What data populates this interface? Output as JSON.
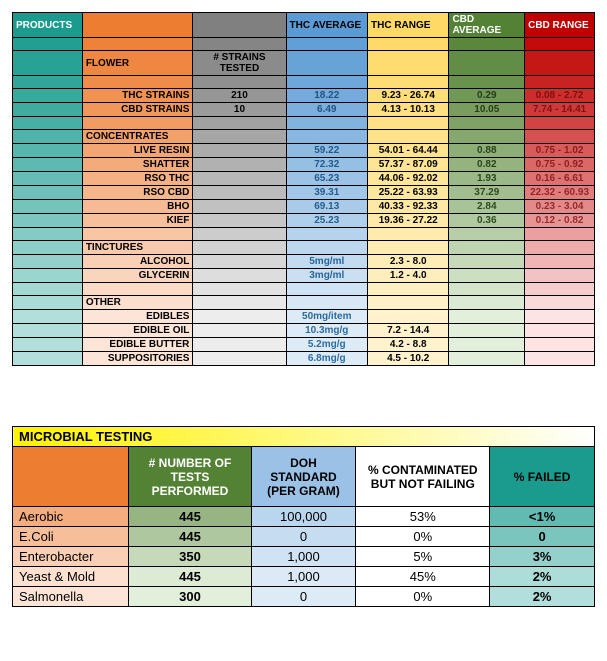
{
  "colors": {
    "teal_dark": "#1a9b8e",
    "teal_mid": "#4db6ac",
    "teal_light": "#b2dfdb",
    "orange_dark": "#ed7d31",
    "orange_mid": "#f4b084",
    "orange_light": "#fce4d6",
    "grey_dark": "#808080",
    "grey_mid": "#bfbfbf",
    "grey_light": "#ededed",
    "blue_dark": "#5b9bd5",
    "blue_mid": "#9bc2e6",
    "blue_light": "#ddebf7",
    "yellow_dark": "#ffd966",
    "yellow_mid": "#ffe699",
    "yellow_light": "#fff2cc",
    "green_dark": "#548235",
    "green_mid": "#a9d08e",
    "green_light": "#e2efda",
    "red_dark": "#c00000",
    "red_mid": "#f4b0b0",
    "red_light": "#fce4e4",
    "white": "#ffffff",
    "yellow_grad_left": "#fff200",
    "yellow_grad_right": "#ffffff"
  },
  "products": {
    "headers": [
      "PRODUCTS",
      "",
      "",
      "THC AVERAGE",
      "THC RANGE",
      "CBD AVERAGE",
      "CBD RANGE"
    ],
    "strains_tested_label": "# STRAINS TESTED",
    "sections": [
      {
        "title": "FLOWER",
        "rows": [
          {
            "name": "THC STRAINS",
            "tested": "210",
            "thc_avg": "18.22",
            "thc_range": "9.23 - 26.74",
            "cbd_avg": "0.29",
            "cbd_range": "0.08 - 2.72"
          },
          {
            "name": "CBD STRAINS",
            "tested": "10",
            "thc_avg": "6.49",
            "thc_range": "4.13 - 10.13",
            "cbd_avg": "10.05",
            "cbd_range": "7.74 - 14.41"
          }
        ]
      },
      {
        "title": "CONCENTRATES",
        "rows": [
          {
            "name": "LIVE RESIN",
            "tested": "",
            "thc_avg": "59.22",
            "thc_range": "54.01 - 64.44",
            "cbd_avg": "0.88",
            "cbd_range": "0.75 - 1.02"
          },
          {
            "name": "SHATTER",
            "tested": "",
            "thc_avg": "72.32",
            "thc_range": "57.37 - 87.09",
            "cbd_avg": "0.82",
            "cbd_range": "0.75 - 0.92"
          },
          {
            "name": "RSO THC",
            "tested": "",
            "thc_avg": "65.23",
            "thc_range": "44.06 - 92.02",
            "cbd_avg": "1.93",
            "cbd_range": "0.16 - 6.61"
          },
          {
            "name": "RSO CBD",
            "tested": "",
            "thc_avg": "39.31",
            "thc_range": "25.22 - 63.93",
            "cbd_avg": "37.29",
            "cbd_range": "22.32 - 60.93"
          },
          {
            "name": "BHO",
            "tested": "",
            "thc_avg": "69.13",
            "thc_range": "40.33 - 92.33",
            "cbd_avg": "2.84",
            "cbd_range": "0.23 - 3.04"
          },
          {
            "name": "KIEF",
            "tested": "",
            "thc_avg": "25.23",
            "thc_range": "19.36 - 27.22",
            "cbd_avg": "0.36",
            "cbd_range": "0.12 - 0.82"
          }
        ]
      },
      {
        "title": "TINCTURES",
        "rows": [
          {
            "name": "ALCOHOL",
            "tested": "",
            "thc_avg": "5mg/ml",
            "thc_range": "2.3 - 8.0",
            "cbd_avg": "",
            "cbd_range": ""
          },
          {
            "name": "GLYCERIN",
            "tested": "",
            "thc_avg": "3mg/ml",
            "thc_range": "1.2 - 4.0",
            "cbd_avg": "",
            "cbd_range": ""
          }
        ]
      },
      {
        "title": "OTHER",
        "rows": [
          {
            "name": "EDIBLES",
            "tested": "",
            "thc_avg": "50mg/item",
            "thc_range": "",
            "cbd_avg": "",
            "cbd_range": ""
          },
          {
            "name": "EDIBLE OIL",
            "tested": "",
            "thc_avg": "10.3mg/g",
            "thc_range": "7.2 - 14.4",
            "cbd_avg": "",
            "cbd_range": ""
          },
          {
            "name": "EDIBLE BUTTER",
            "tested": "",
            "thc_avg": "5.2mg/g",
            "thc_range": "4.2 - 8.8",
            "cbd_avg": "",
            "cbd_range": ""
          },
          {
            "name": "SUPPOSITORIES",
            "tested": "",
            "thc_avg": "6.8mg/g",
            "thc_range": "4.5 - 10.2",
            "cbd_avg": "",
            "cbd_range": ""
          }
        ]
      }
    ]
  },
  "microbial": {
    "title": "MICROBIAL TESTING",
    "headers": [
      "",
      "# NUMBER OF TESTS PERFORMED",
      "DOH STANDARD (PER GRAM)",
      "% CONTAMINATED BUT NOT FAILING",
      "% FAILED"
    ],
    "rows": [
      {
        "name": "Aerobic",
        "tests": "445",
        "doh": "100,000",
        "contam": "53%",
        "failed": "<1%"
      },
      {
        "name": "E.Coli",
        "tests": "445",
        "doh": "0",
        "contam": "0%",
        "failed": "0"
      },
      {
        "name": "Enterobacter",
        "tests": "350",
        "doh": "1,000",
        "contam": "5%",
        "failed": "3%"
      },
      {
        "name": "Yeast & Mold",
        "tests": "445",
        "doh": "1,000",
        "contam": "45%",
        "failed": "2%"
      },
      {
        "name": "Salmonella",
        "tests": "300",
        "doh": "0",
        "contam": "0%",
        "failed": "2%"
      }
    ]
  }
}
